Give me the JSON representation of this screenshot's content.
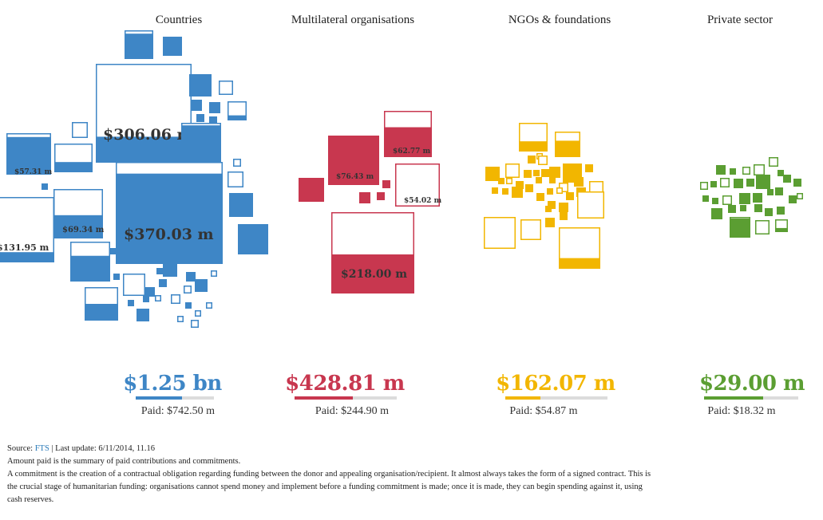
{
  "colors": {
    "countries": "#3e86c6",
    "multilateral": "#c8374f",
    "ngos": "#f2b600",
    "private": "#5b9e32"
  },
  "columns": [
    {
      "key": "countries",
      "title": "Countries",
      "total": "$1.25 bn",
      "paid": "Paid: $742.50 m",
      "paid_fraction": 0.59,
      "color": "#3e86c6"
    },
    {
      "key": "multilateral",
      "title": "Multilateral organisations",
      "total": "$428.81 m",
      "paid": "Paid: $244.90 m",
      "paid_fraction": 0.57,
      "color": "#c8374f"
    },
    {
      "key": "ngos",
      "title": "NGOs & foundations",
      "total": "$162.07 m",
      "paid": "Paid: $54.87 m",
      "paid_fraction": 0.34,
      "color": "#f2b600"
    },
    {
      "key": "private",
      "title": "Private sector",
      "total": "$29.00 m",
      "paid": "Paid: $18.32 m",
      "paid_fraction": 0.63,
      "color": "#5b9e32"
    }
  ],
  "chart_data": {
    "type": "treemap-squares",
    "title": "",
    "series": [
      {
        "name": "Countries",
        "commitment_total": "$1.25 bn",
        "paid_total": "$742.50 m",
        "labelled_donors": [
          {
            "label": "$370.03 m",
            "value": 370.03,
            "paid_fraction": 0.89
          },
          {
            "label": "$306.06 m",
            "value": 306.06,
            "paid_fraction": 0.26
          },
          {
            "label": "$131.95 m",
            "value": 131.95,
            "paid_fraction": 0.15
          },
          {
            "label": "$69.34 m",
            "value": 69.34,
            "paid_fraction": 0.47
          },
          {
            "label": "$57.31 m",
            "value": 57.31,
            "paid_fraction": 0.92
          }
        ]
      },
      {
        "name": "Multilateral organisations",
        "commitment_total": "$428.81 m",
        "paid_total": "$244.90 m",
        "labelled_donors": [
          {
            "label": "$218.00 m",
            "value": 218.0,
            "paid_fraction": 0.48
          },
          {
            "label": "$76.43 m",
            "value": 76.43,
            "paid_fraction": 1.0
          },
          {
            "label": "$62.77 m",
            "value": 62.77,
            "paid_fraction": 0.65
          },
          {
            "label": "$54.02 m",
            "value": 54.02,
            "paid_fraction": 0.0
          }
        ]
      },
      {
        "name": "NGOs & foundations",
        "commitment_total": "$162.07 m",
        "paid_total": "$54.87 m",
        "labelled_donors": []
      },
      {
        "name": "Private sector",
        "commitment_total": "$29.00 m",
        "paid_total": "$18.32 m",
        "labelled_donors": []
      }
    ]
  },
  "footer": {
    "source_prefix": "Source: ",
    "source_link": "FTS",
    "source_suffix": " | Last update: 6/11/2014, 11.16",
    "note1": "Amount paid is the summary of paid contributions and commitments.",
    "note2": "A commitment is the creation of a contractual obligation regarding funding between the donor and appealing organisation/recipient. It almost always takes the form of a signed contract. This is the crucial stage of humanitarian funding: organisations cannot spend money and implement before a funding commitment is made; once it is made, they can begin spending against it, using cash reserves."
  }
}
